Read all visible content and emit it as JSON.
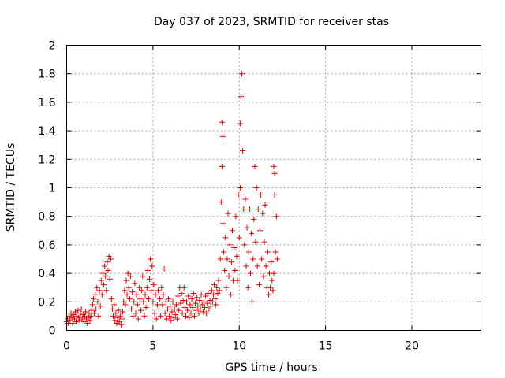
{
  "chart_data": {
    "type": "scatter",
    "title": "Day 037 of 2023, SRMTID for receiver stas",
    "xlabel": "GPS time / hours",
    "ylabel": "SRMTID / TECUs",
    "xlim": [
      0,
      24
    ],
    "ylim": [
      0,
      2
    ],
    "xticks": [
      0,
      5,
      10,
      15,
      20
    ],
    "xtick_labels": [
      "0",
      "5",
      "10",
      "15",
      "20"
    ],
    "yticks": [
      0,
      0.2,
      0.4,
      0.6,
      0.8,
      1,
      1.2,
      1.4,
      1.6,
      1.8,
      2
    ],
    "ytick_labels": [
      "0",
      "0.2",
      "0.4",
      "0.6",
      "0.8",
      "1",
      "1.2",
      "1.4",
      "1.6",
      "1.8",
      "2"
    ],
    "grid": true,
    "marker": "plus",
    "color": "#e00000",
    "series": [
      {
        "name": "stas",
        "points": [
          [
            0.0,
            0.06
          ],
          [
            0.05,
            0.08
          ],
          [
            0.1,
            0.05
          ],
          [
            0.15,
            0.1
          ],
          [
            0.2,
            0.07
          ],
          [
            0.25,
            0.12
          ],
          [
            0.3,
            0.09
          ],
          [
            0.35,
            0.05
          ],
          [
            0.4,
            0.11
          ],
          [
            0.45,
            0.08
          ],
          [
            0.5,
            0.13
          ],
          [
            0.55,
            0.06
          ],
          [
            0.6,
            0.1
          ],
          [
            0.65,
            0.14
          ],
          [
            0.7,
            0.09
          ],
          [
            0.75,
            0.07
          ],
          [
            0.8,
            0.12
          ],
          [
            0.85,
            0.15
          ],
          [
            0.9,
            0.08
          ],
          [
            0.95,
            0.11
          ],
          [
            1.0,
            0.06
          ],
          [
            1.05,
            0.1
          ],
          [
            1.1,
            0.13
          ],
          [
            1.15,
            0.08
          ],
          [
            1.2,
            0.05
          ],
          [
            1.25,
            0.09
          ],
          [
            1.3,
            0.12
          ],
          [
            1.35,
            0.07
          ],
          [
            1.4,
            0.1
          ],
          [
            1.45,
            0.14
          ],
          [
            1.5,
            0.18
          ],
          [
            1.55,
            0.22
          ],
          [
            1.6,
            0.12
          ],
          [
            1.65,
            0.25
          ],
          [
            1.7,
            0.15
          ],
          [
            1.75,
            0.3
          ],
          [
            1.8,
            0.2
          ],
          [
            1.85,
            0.1
          ],
          [
            1.9,
            0.28
          ],
          [
            1.95,
            0.17
          ],
          [
            2.0,
            0.35
          ],
          [
            2.05,
            0.25
          ],
          [
            2.1,
            0.4
          ],
          [
            2.15,
            0.32
          ],
          [
            2.2,
            0.45
          ],
          [
            2.25,
            0.38
          ],
          [
            2.3,
            0.28
          ],
          [
            2.35,
            0.48
          ],
          [
            2.4,
            0.42
          ],
          [
            2.45,
            0.52
          ],
          [
            2.5,
            0.36
          ],
          [
            2.55,
            0.5
          ],
          [
            2.6,
            0.22
          ],
          [
            2.65,
            0.15
          ],
          [
            2.7,
            0.1
          ],
          [
            2.75,
            0.18
          ],
          [
            2.8,
            0.07
          ],
          [
            2.85,
            0.12
          ],
          [
            2.9,
            0.05
          ],
          [
            2.95,
            0.09
          ],
          [
            3.0,
            0.14
          ],
          [
            3.05,
            0.06
          ],
          [
            3.1,
            0.1
          ],
          [
            3.15,
            0.04
          ],
          [
            3.2,
            0.08
          ],
          [
            3.25,
            0.13
          ],
          [
            3.3,
            0.2
          ],
          [
            3.35,
            0.28
          ],
          [
            3.4,
            0.18
          ],
          [
            3.45,
            0.35
          ],
          [
            3.5,
            0.25
          ],
          [
            3.55,
            0.4
          ],
          [
            3.6,
            0.3
          ],
          [
            3.65,
            0.22
          ],
          [
            3.7,
            0.38
          ],
          [
            3.75,
            0.15
          ],
          [
            3.8,
            0.27
          ],
          [
            3.85,
            0.1
          ],
          [
            3.9,
            0.2
          ],
          [
            3.95,
            0.33
          ],
          [
            4.0,
            0.12
          ],
          [
            4.05,
            0.25
          ],
          [
            4.1,
            0.18
          ],
          [
            4.15,
            0.08
          ],
          [
            4.2,
            0.3
          ],
          [
            4.25,
            0.22
          ],
          [
            4.3,
            0.14
          ],
          [
            4.35,
            0.28
          ],
          [
            4.4,
            0.38
          ],
          [
            4.45,
            0.2
          ],
          [
            4.5,
            0.1
          ],
          [
            4.55,
            0.25
          ],
          [
            4.6,
            0.16
          ],
          [
            4.65,
            0.3
          ],
          [
            4.7,
            0.42
          ],
          [
            4.75,
            0.22
          ],
          [
            4.8,
            0.36
          ],
          [
            4.85,
            0.5
          ],
          [
            4.9,
            0.28
          ],
          [
            4.95,
            0.45
          ],
          [
            5.0,
            0.2
          ],
          [
            5.05,
            0.32
          ],
          [
            5.1,
            0.12
          ],
          [
            5.15,
            0.25
          ],
          [
            5.2,
            0.08
          ],
          [
            5.25,
            0.18
          ],
          [
            5.3,
            0.28
          ],
          [
            5.35,
            0.15
          ],
          [
            5.4,
            0.22
          ],
          [
            5.45,
            0.1
          ],
          [
            5.5,
            0.3
          ],
          [
            5.55,
            0.18
          ],
          [
            5.6,
            0.25
          ],
          [
            5.65,
            0.43
          ],
          [
            5.7,
            0.12
          ],
          [
            5.75,
            0.2
          ],
          [
            5.8,
            0.08
          ],
          [
            5.85,
            0.15
          ],
          [
            5.9,
            0.22
          ],
          [
            5.95,
            0.1
          ],
          [
            6.0,
            0.17
          ],
          [
            6.05,
            0.07
          ],
          [
            6.1,
            0.13
          ],
          [
            6.15,
            0.2
          ],
          [
            6.2,
            0.09
          ],
          [
            6.25,
            0.15
          ],
          [
            6.3,
            0.11
          ],
          [
            6.35,
            0.18
          ],
          [
            6.4,
            0.08
          ],
          [
            6.45,
            0.24
          ],
          [
            6.5,
            0.14
          ],
          [
            6.55,
            0.3
          ],
          [
            6.6,
            0.19
          ],
          [
            6.65,
            0.26
          ],
          [
            6.7,
            0.12
          ],
          [
            6.75,
            0.21
          ],
          [
            6.8,
            0.3
          ],
          [
            6.85,
            0.16
          ],
          [
            6.9,
            0.1
          ],
          [
            6.95,
            0.2
          ],
          [
            7.0,
            0.14
          ],
          [
            7.05,
            0.24
          ],
          [
            7.1,
            0.09
          ],
          [
            7.15,
            0.18
          ],
          [
            7.2,
            0.12
          ],
          [
            7.25,
            0.22
          ],
          [
            7.3,
            0.16
          ],
          [
            7.35,
            0.26
          ],
          [
            7.4,
            0.1
          ],
          [
            7.45,
            0.19
          ],
          [
            7.5,
            0.14
          ],
          [
            7.55,
            0.23
          ],
          [
            7.6,
            0.17
          ],
          [
            7.65,
            0.12
          ],
          [
            7.7,
            0.21
          ],
          [
            7.75,
            0.15
          ],
          [
            7.8,
            0.25
          ],
          [
            7.85,
            0.18
          ],
          [
            7.9,
            0.13
          ],
          [
            7.95,
            0.2
          ],
          [
            8.0,
            0.16
          ],
          [
            8.05,
            0.24
          ],
          [
            8.1,
            0.12
          ],
          [
            8.15,
            0.19
          ],
          [
            8.2,
            0.26
          ],
          [
            8.25,
            0.15
          ],
          [
            8.3,
            0.21
          ],
          [
            8.35,
            0.17
          ],
          [
            8.4,
            0.28
          ],
          [
            8.45,
            0.2
          ],
          [
            8.5,
            0.25
          ],
          [
            8.55,
            0.32
          ],
          [
            8.6,
            0.22
          ],
          [
            8.65,
            0.18
          ],
          [
            8.7,
            0.3
          ],
          [
            8.75,
            0.26
          ],
          [
            8.8,
            0.35
          ],
          [
            8.85,
            0.28
          ],
          [
            8.9,
            0.5
          ],
          [
            8.95,
            0.9
          ],
          [
            9.0,
            1.15
          ],
          [
            9.0,
            1.46
          ],
          [
            9.05,
            0.75
          ],
          [
            9.05,
            1.36
          ],
          [
            9.1,
            0.55
          ],
          [
            9.15,
            0.42
          ],
          [
            9.2,
            0.65
          ],
          [
            9.25,
            0.3
          ],
          [
            9.3,
            0.5
          ],
          [
            9.35,
            0.82
          ],
          [
            9.4,
            0.38
          ],
          [
            9.45,
            0.6
          ],
          [
            9.5,
            0.25
          ],
          [
            9.55,
            0.48
          ],
          [
            9.6,
            0.7
          ],
          [
            9.65,
            0.35
          ],
          [
            9.7,
            0.58
          ],
          [
            9.75,
            0.42
          ],
          [
            9.8,
            0.8
          ],
          [
            9.85,
            0.52
          ],
          [
            9.9,
            0.35
          ],
          [
            9.95,
            0.95
          ],
          [
            10.0,
            0.65
          ],
          [
            10.05,
            1.0
          ],
          [
            10.05,
            1.45
          ],
          [
            10.1,
            1.64
          ],
          [
            10.15,
            1.8
          ],
          [
            10.2,
            1.26
          ],
          [
            10.25,
            0.85
          ],
          [
            10.3,
            0.6
          ],
          [
            10.35,
            0.92
          ],
          [
            10.4,
            0.45
          ],
          [
            10.45,
            0.72
          ],
          [
            10.5,
            0.3
          ],
          [
            10.55,
            0.55
          ],
          [
            10.6,
            0.85
          ],
          [
            10.65,
            0.4
          ],
          [
            10.7,
            0.68
          ],
          [
            10.75,
            0.2
          ],
          [
            10.8,
            0.5
          ],
          [
            10.85,
            0.78
          ],
          [
            10.9,
            1.15
          ],
          [
            10.95,
            0.62
          ],
          [
            11.0,
            1.0
          ],
          [
            11.05,
            0.45
          ],
          [
            11.1,
            0.85
          ],
          [
            11.15,
            0.32
          ],
          [
            11.2,
            0.7
          ],
          [
            11.25,
            0.95
          ],
          [
            11.3,
            0.5
          ],
          [
            11.35,
            0.82
          ],
          [
            11.4,
            0.38
          ],
          [
            11.45,
            0.62
          ],
          [
            11.5,
            0.88
          ],
          [
            11.55,
            0.45
          ],
          [
            11.6,
            0.3
          ],
          [
            11.65,
            0.55
          ],
          [
            11.7,
            0.25
          ],
          [
            11.75,
            0.4
          ],
          [
            11.8,
            0.3
          ],
          [
            11.85,
            0.48
          ],
          [
            11.9,
            0.35
          ],
          [
            11.95,
            0.28
          ],
          [
            12.0,
            0.4
          ],
          [
            12.0,
            1.15
          ],
          [
            12.05,
            1.1
          ],
          [
            12.05,
            0.95
          ],
          [
            12.1,
            0.55
          ],
          [
            12.15,
            0.8
          ],
          [
            12.2,
            0.5
          ]
        ]
      }
    ]
  }
}
